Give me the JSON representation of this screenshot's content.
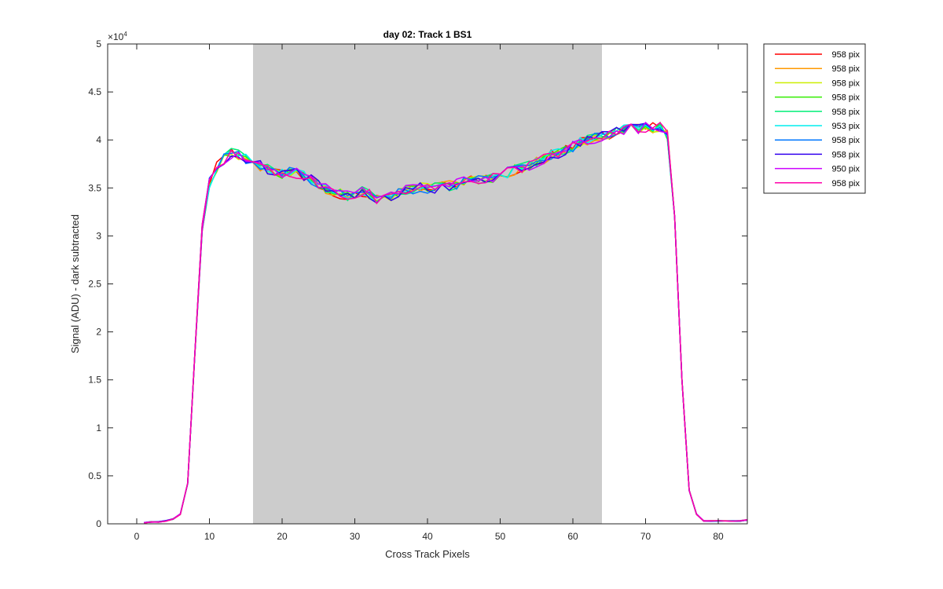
{
  "chart_data": {
    "type": "line",
    "title": "day 02: Track 1  BS1",
    "xlabel": "Cross Track Pixels",
    "ylabel": "Signal (ADU) - dark subtracted",
    "y_exponent_label": "×10",
    "y_exponent_power": "4",
    "xlim": [
      -4,
      84
    ],
    "ylim": [
      0,
      5
    ],
    "x_ticks": [
      0,
      10,
      20,
      30,
      40,
      50,
      60,
      70,
      80
    ],
    "y_ticks": [
      0,
      0.5,
      1,
      1.5,
      2,
      2.5,
      3,
      3.5,
      4,
      4.5,
      5
    ],
    "x_tick_labels": [
      "0",
      "10",
      "20",
      "30",
      "40",
      "50",
      "60",
      "70",
      "80"
    ],
    "y_tick_labels": [
      "0",
      "0.5",
      "1",
      "1.5",
      "2",
      "2.5",
      "3",
      "3.5",
      "4",
      "4.5",
      "5"
    ],
    "shaded_region": {
      "x_start": 16,
      "x_end": 64,
      "color": "#cccccc"
    },
    "grid": false,
    "legend_position": "outside-top-right",
    "x": [
      1,
      2,
      3,
      4,
      5,
      6,
      7,
      8,
      9,
      10,
      11,
      12,
      13,
      14,
      15,
      16,
      17,
      18,
      19,
      20,
      21,
      22,
      23,
      24,
      25,
      26,
      27,
      28,
      29,
      30,
      31,
      32,
      33,
      34,
      35,
      36,
      37,
      38,
      39,
      40,
      41,
      42,
      43,
      44,
      45,
      46,
      47,
      48,
      49,
      50,
      51,
      52,
      53,
      54,
      55,
      56,
      57,
      58,
      59,
      60,
      61,
      62,
      63,
      64,
      65,
      66,
      67,
      68,
      69,
      70,
      71,
      72,
      73,
      74,
      75,
      76,
      77,
      78,
      79,
      80,
      81,
      82,
      83,
      84
    ],
    "base_curve": [
      0.01,
      0.02,
      0.02,
      0.03,
      0.05,
      0.1,
      0.42,
      1.75,
      3.1,
      3.55,
      3.72,
      3.8,
      3.86,
      3.84,
      3.8,
      3.76,
      3.73,
      3.7,
      3.66,
      3.64,
      3.66,
      3.65,
      3.62,
      3.59,
      3.55,
      3.49,
      3.45,
      3.44,
      3.42,
      3.44,
      3.46,
      3.43,
      3.39,
      3.41,
      3.42,
      3.45,
      3.48,
      3.49,
      3.5,
      3.5,
      3.5,
      3.51,
      3.52,
      3.54,
      3.56,
      3.57,
      3.58,
      3.59,
      3.6,
      3.62,
      3.66,
      3.69,
      3.71,
      3.73,
      3.77,
      3.8,
      3.84,
      3.86,
      3.89,
      3.93,
      3.97,
      4.0,
      4.02,
      4.04,
      4.06,
      4.08,
      4.1,
      4.12,
      4.12,
      4.13,
      4.13,
      4.14,
      4.05,
      3.2,
      1.5,
      0.35,
      0.1,
      0.03,
      0.03,
      0.03,
      0.03,
      0.03,
      0.03,
      0.04
    ],
    "series": [
      {
        "label": "958 pix",
        "color": "#ff0000"
      },
      {
        "label": "958 pix",
        "color": "#ff9900"
      },
      {
        "label": "958 pix",
        "color": "#ccee00"
      },
      {
        "label": "958 pix",
        "color": "#33ee00"
      },
      {
        "label": "958 pix",
        "color": "#00ee77"
      },
      {
        "label": "953 pix",
        "color": "#00eeee"
      },
      {
        "label": "958 pix",
        "color": "#0077ff"
      },
      {
        "label": "958 pix",
        "color": "#3300ee"
      },
      {
        "label": "950 pix",
        "color": "#cc00ff"
      },
      {
        "label": "958 pix",
        "color": "#ff00aa"
      }
    ]
  }
}
